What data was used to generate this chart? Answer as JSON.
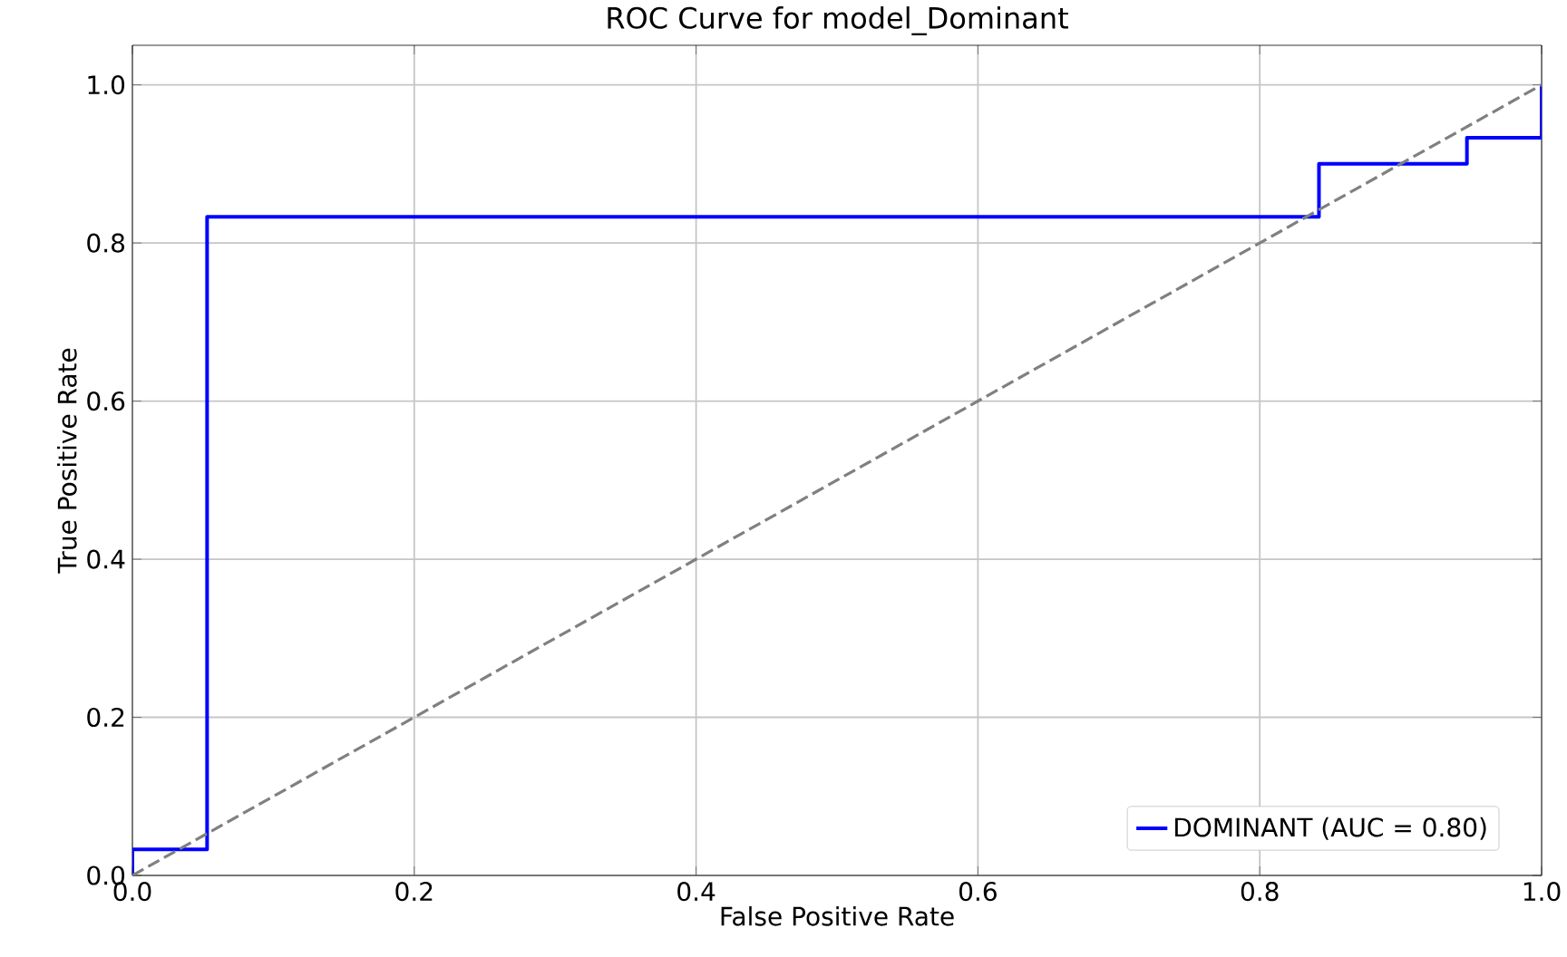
{
  "chart_data": {
    "type": "line",
    "title": "ROC Curve for model_Dominant",
    "xlabel": "False Positive Rate",
    "ylabel": "True Positive Rate",
    "xlim": [
      0,
      1
    ],
    "ylim": [
      0,
      1.05
    ],
    "xticks": [
      {
        "value": 0,
        "label": "0.0"
      },
      {
        "value": 0.2,
        "label": "0.2"
      },
      {
        "value": 0.4,
        "label": "0.4"
      },
      {
        "value": 0.6,
        "label": "0.6"
      },
      {
        "value": 0.8,
        "label": "0.8"
      },
      {
        "value": 1,
        "label": "1.0"
      }
    ],
    "yticks": [
      {
        "value": 0,
        "label": "0.0"
      },
      {
        "value": 0.2,
        "label": "0.2"
      },
      {
        "value": 0.4,
        "label": "0.4"
      },
      {
        "value": 0.6,
        "label": "0.6"
      },
      {
        "value": 0.8,
        "label": "0.8"
      },
      {
        "value": 1,
        "label": "1.0"
      }
    ],
    "grid": true,
    "legend": "bottom right",
    "series": [
      {
        "name": "DOMINANT (AUC = 0.80)",
        "color": "#0000ff",
        "line_style": "solid",
        "x": [
          0,
          0,
          0.053,
          0.053,
          0.842,
          0.842,
          0.947,
          0.947,
          1,
          1
        ],
        "values": [
          0,
          0.033,
          0.033,
          0.833,
          0.833,
          0.9,
          0.9,
          0.933,
          0.933,
          1
        ]
      },
      {
        "color": "#808080",
        "line_style": "dashed",
        "x": [
          0,
          1
        ],
        "values": [
          0,
          1
        ]
      }
    ]
  }
}
